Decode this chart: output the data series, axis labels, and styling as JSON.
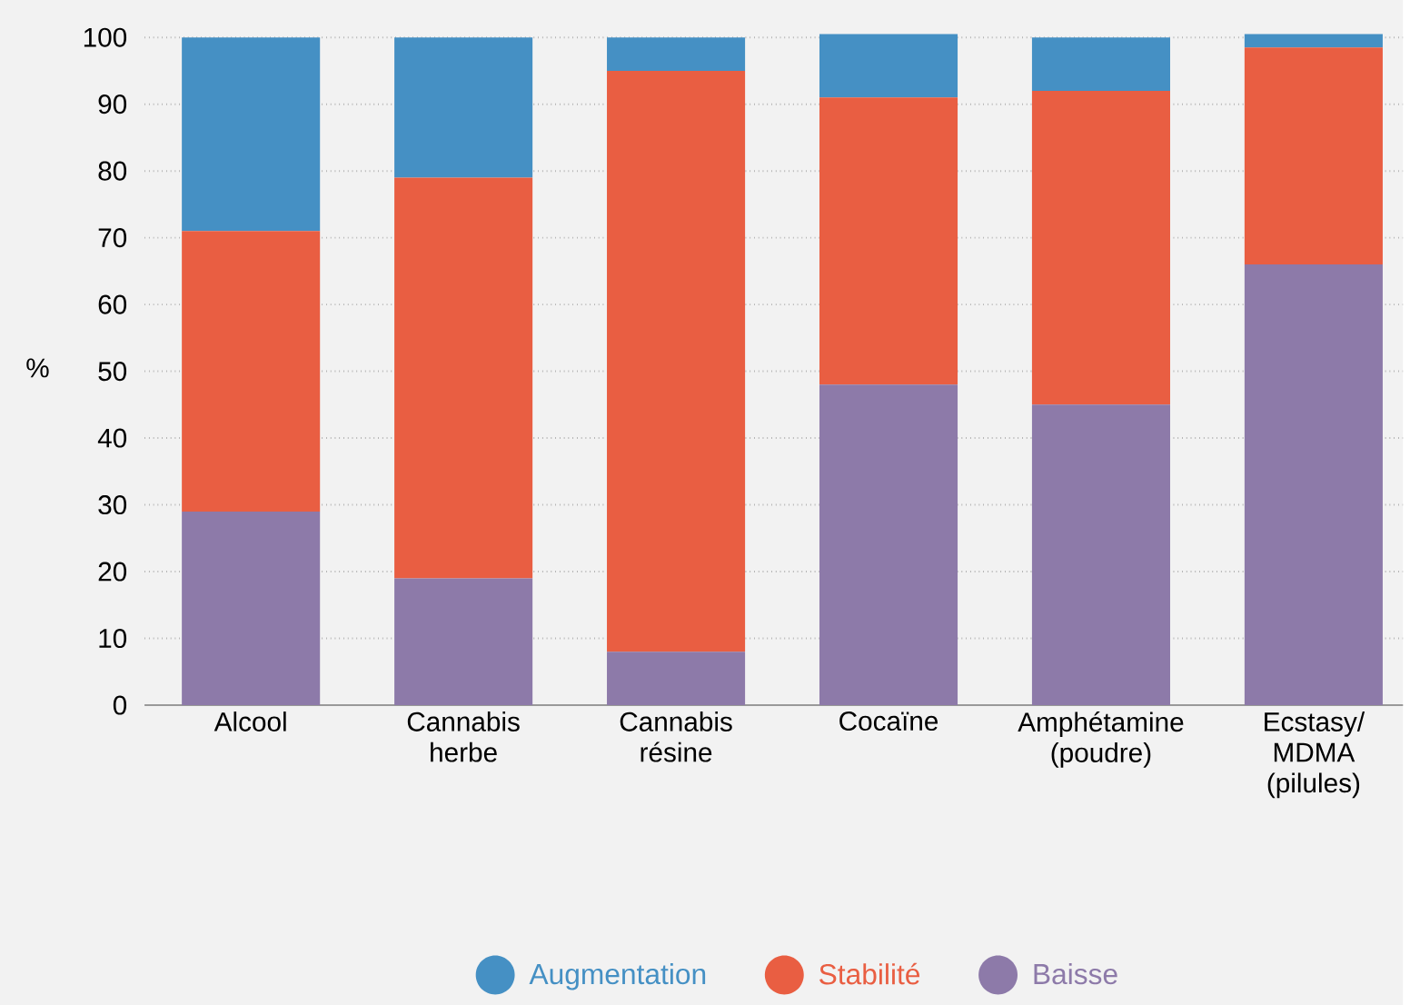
{
  "chart_data": {
    "type": "bar",
    "stacked": true,
    "ylabel": "%",
    "categories": [
      "Alcool",
      "Cannabis herbe",
      "Cannabis résine",
      "Cocaïne",
      "Amphétamine (poudre)",
      "Ecstasy/ MDMA (pilules)"
    ],
    "series": [
      {
        "name": "Baisse",
        "color": "#8d7aa9",
        "values": [
          29,
          19,
          8,
          48,
          45,
          66
        ]
      },
      {
        "name": "Stabilité",
        "color": "#e95e42",
        "values": [
          42,
          60,
          87,
          43,
          47,
          32.5
        ]
      },
      {
        "name": "Augmentation",
        "color": "#4590c4",
        "values": [
          29,
          21,
          5,
          9.5,
          8,
          2
        ]
      }
    ],
    "ylim": [
      0,
      101
    ],
    "yticks": [
      0,
      10,
      20,
      30,
      40,
      50,
      60,
      70,
      80,
      90,
      100
    ],
    "grid": "y",
    "legend": "bottom"
  }
}
